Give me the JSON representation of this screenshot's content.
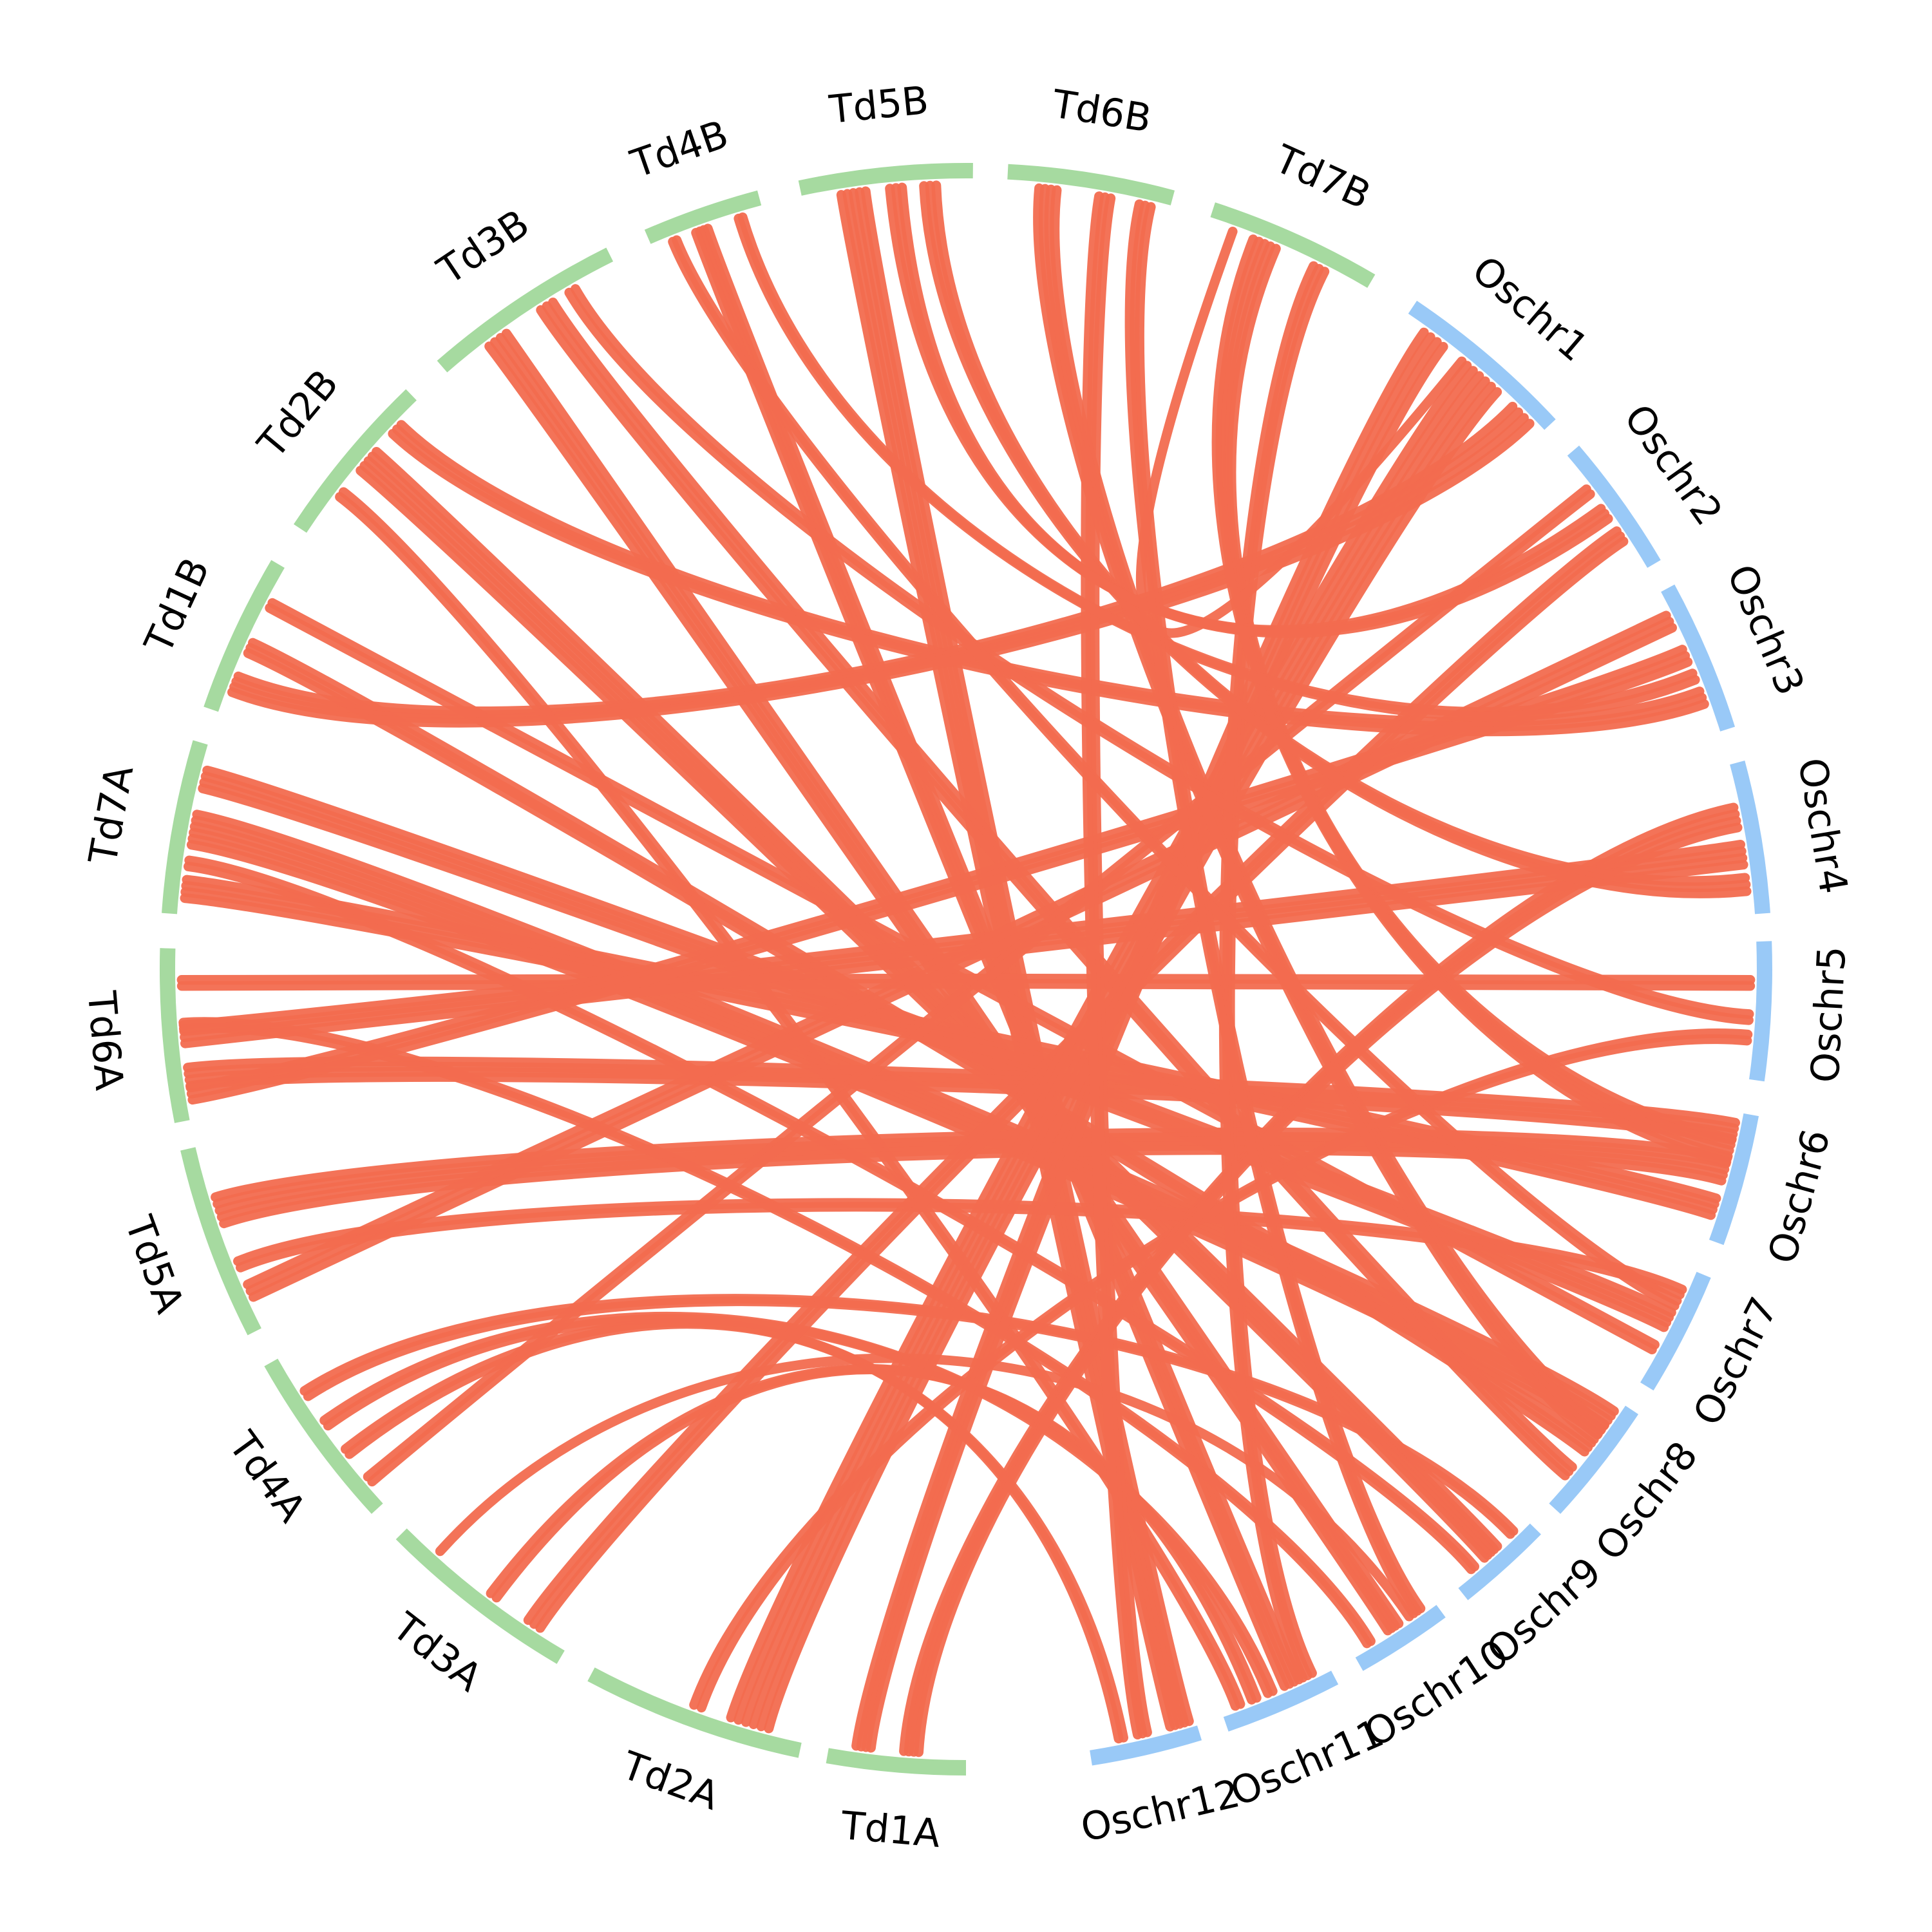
{
  "colors": {
    "rice_track": "#99C9F7",
    "wheat_track": "#A6DAA0",
    "link": "#F26C4F",
    "background": "#FFFFFF",
    "label": "#000000"
  },
  "chromosomes": [
    {
      "id": "Td1A",
      "label": "Td1A",
      "group": "wheat",
      "start": 90.0,
      "end": 100.0
    },
    {
      "id": "Td2A",
      "label": "Td2A",
      "group": "wheat",
      "start": 102.0,
      "end": 118.0
    },
    {
      "id": "Td3A",
      "label": "Td3A",
      "group": "wheat",
      "start": 120.5,
      "end": 135.0
    },
    {
      "id": "Td4A",
      "label": "Td4A",
      "group": "wheat",
      "start": 137.5,
      "end": 150.5
    },
    {
      "id": "Td5A",
      "label": "Td5A",
      "group": "wheat",
      "start": 153.0,
      "end": 167.0
    },
    {
      "id": "Td6A",
      "label": "Td6A",
      "group": "wheat",
      "start": 169.0,
      "end": 181.5
    },
    {
      "id": "Td7A",
      "label": "Td7A",
      "group": "wheat",
      "start": 184.0,
      "end": 196.5
    },
    {
      "id": "Td1B",
      "label": "Td1B",
      "group": "wheat",
      "start": 199.0,
      "end": 210.5
    },
    {
      "id": "Td2B",
      "label": "Td2B",
      "group": "wheat",
      "start": 213.5,
      "end": 226.0
    },
    {
      "id": "Td3B",
      "label": "Td3B",
      "group": "wheat",
      "start": 229.0,
      "end": 243.5
    },
    {
      "id": "Td4B",
      "label": "Td4B",
      "group": "wheat",
      "start": 246.5,
      "end": 255.0
    },
    {
      "id": "Td5B",
      "label": "Td5B",
      "group": "wheat",
      "start": 258.0,
      "end": 270.5
    },
    {
      "id": "Td6B",
      "label": "Td6B",
      "group": "wheat",
      "start": 273.0,
      "end": 285.0
    },
    {
      "id": "Td7B",
      "label": "Td7B",
      "group": "wheat",
      "start": 288.0,
      "end": 300.5
    },
    {
      "id": "Oschr1",
      "label": "Oschr1",
      "group": "rice",
      "start": 304.0,
      "end": 317.0
    },
    {
      "id": "Oschr2",
      "label": "Oschr2",
      "group": "rice",
      "start": 319.5,
      "end": 329.5
    },
    {
      "id": "Oschr3",
      "label": "Oschr3",
      "group": "rice",
      "start": 331.5,
      "end": 342.5
    },
    {
      "id": "Oschr4",
      "label": "Oschr4",
      "group": "rice",
      "start": 345.0,
      "end": 356.0
    },
    {
      "id": "Oschr5",
      "label": "Oschr5",
      "group": "rice",
      "start": 358.0,
      "end": 368.0
    },
    {
      "id": "Oschr6",
      "label": "Oschr6",
      "group": "rice",
      "start": 370.5,
      "end": 380.0
    },
    {
      "id": "Oschr7",
      "label": "Oschr7",
      "group": "rice",
      "start": 382.5,
      "end": 391.5
    },
    {
      "id": "Oschr8",
      "label": "Oschr8",
      "group": "rice",
      "start": 393.5,
      "end": 402.5
    },
    {
      "id": "Oschr9",
      "label": "Oschr9",
      "group": "rice",
      "start": 404.5,
      "end": 411.5
    },
    {
      "id": "Oschr10",
      "label": "Oschr10",
      "group": "rice",
      "start": 413.5,
      "end": 420.5
    },
    {
      "id": "Oschr11",
      "label": "Oschr11",
      "group": "rice",
      "start": 422.5,
      "end": 431.0
    },
    {
      "id": "Oschr12",
      "label": "Oschr12",
      "group": "rice",
      "start": 433.0,
      "end": 441.0
    }
  ],
  "links": [
    {
      "from": "Oschr12",
      "to": "Td5B",
      "a": 0.15,
      "b": 0.3,
      "count": 5
    },
    {
      "from": "Oschr12",
      "to": "Td4A",
      "a": 0.7,
      "b": 0.35,
      "count": 2
    },
    {
      "from": "Oschr11",
      "to": "Td4B",
      "a": 0.35,
      "b": 0.45,
      "count": 4
    },
    {
      "from": "Oschr11",
      "to": "Td3A",
      "a": 0.7,
      "b": 0.45,
      "count": 2
    },
    {
      "from": "Oschr11",
      "to": "Td4A",
      "a": 0.55,
      "b": 0.55,
      "count": 2
    },
    {
      "from": "Oschr11",
      "to": "Td2B",
      "a": 0.85,
      "b": 0.3,
      "count": 2
    },
    {
      "from": "Oschr10",
      "to": "Td3A",
      "a": 0.3,
      "b": 0.8,
      "count": 1
    },
    {
      "from": "Oschr10",
      "to": "Td3B",
      "a": 0.5,
      "b": 0.3,
      "count": 4
    },
    {
      "from": "Oschr10",
      "to": "Td6A",
      "a": 0.8,
      "b": 0.55,
      "count": 2
    },
    {
      "from": "Oschr9",
      "to": "Td4A",
      "a": 0.2,
      "b": 0.75,
      "count": 2
    },
    {
      "from": "Oschr9",
      "to": "Td2B",
      "a": 0.5,
      "b": 0.55,
      "count": 5
    },
    {
      "from": "Oschr9",
      "to": "Td7A",
      "a": 0.75,
      "b": 0.3,
      "count": 2
    },
    {
      "from": "Oschr8",
      "to": "Td7A",
      "a": 0.2,
      "b": 0.5,
      "count": 6
    },
    {
      "from": "Oschr8",
      "to": "Td1B",
      "a": 0.45,
      "b": 0.45,
      "count": 3
    },
    {
      "from": "Oschr8",
      "to": "Td3B",
      "a": 0.7,
      "b": 0.6,
      "count": 3
    },
    {
      "from": "Oschr7",
      "to": "Td5A",
      "a": 0.2,
      "b": 0.35,
      "count": 2
    },
    {
      "from": "Oschr7",
      "to": "Td7A",
      "a": 0.45,
      "b": 0.8,
      "count": 4
    },
    {
      "from": "Oschr7",
      "to": "Td1B",
      "a": 0.7,
      "b": 0.75,
      "count": 2
    },
    {
      "from": "Oschr6",
      "to": "Td6A",
      "a": 0.15,
      "b": 0.25,
      "count": 4
    },
    {
      "from": "Oschr6",
      "to": "Td5A",
      "a": 0.45,
      "b": 0.65,
      "count": 5
    },
    {
      "from": "Oschr6",
      "to": "Td7A",
      "a": 0.75,
      "b": 0.15,
      "count": 4
    },
    {
      "from": "Oschr5",
      "to": "Td6A",
      "a": 0.3,
      "b": 0.8,
      "count": 2
    },
    {
      "from": "Oschr5",
      "to": "Td2A",
      "a": 0.7,
      "b": 0.5,
      "count": 2
    },
    {
      "from": "Oschr4",
      "to": "Td1A",
      "a": 0.35,
      "b": 0.4,
      "count": 4
    },
    {
      "from": "Oschr4",
      "to": "Td6A",
      "a": 0.6,
      "b": 0.5,
      "count": 4
    },
    {
      "from": "Oschr3",
      "to": "Td5A",
      "a": 0.2,
      "b": 0.2,
      "count": 3
    },
    {
      "from": "Oschr3",
      "to": "Td6A",
      "a": 0.45,
      "b": 0.15,
      "count": 3
    },
    {
      "from": "Oschr3",
      "to": "Td2B",
      "a": 0.75,
      "b": 0.8,
      "count": 3
    },
    {
      "from": "Oschr2",
      "to": "Td4A",
      "a": 0.3,
      "b": 0.15,
      "count": 2
    },
    {
      "from": "Oschr2",
      "to": "Td3A",
      "a": 0.7,
      "b": 0.2,
      "count": 3
    },
    {
      "from": "Oschr1",
      "to": "Td1A",
      "a": 0.2,
      "b": 0.75,
      "count": 4
    },
    {
      "from": "Oschr1",
      "to": "Td2A",
      "a": 0.55,
      "b": 0.25,
      "count": 6
    },
    {
      "from": "Oschr1",
      "to": "Td1B",
      "a": 0.85,
      "b": 0.2,
      "count": 4
    },
    {
      "from": "Oschr12",
      "to": "Td6B",
      "a": 0.5,
      "b": 0.6,
      "count": 3
    },
    {
      "from": "Oschr11",
      "to": "Td7B",
      "a": 0.2,
      "b": 0.7,
      "count": 3
    },
    {
      "from": "Oschr8",
      "to": "Td6B",
      "a": 0.3,
      "b": 0.25,
      "count": 4
    },
    {
      "from": "Oschr6",
      "to": "Td7B",
      "a": 0.3,
      "b": 0.35,
      "count": 5
    },
    {
      "from": "Oschr4",
      "to": "Td5B",
      "a": 0.8,
      "b": 0.75,
      "count": 3
    },
    {
      "from": "Oschr3",
      "to": "Td4B",
      "a": 0.6,
      "b": 0.8,
      "count": 2
    },
    {
      "from": "Oschr2",
      "to": "Td5B",
      "a": 0.5,
      "b": 0.55,
      "count": 3
    },
    {
      "from": "Oschr5",
      "to": "Td3B",
      "a": 0.55,
      "b": 0.75,
      "count": 2
    },
    {
      "from": "Oschr7",
      "to": "Td4B",
      "a": 0.3,
      "b": 0.2,
      "count": 2
    },
    {
      "from": "Oschr10",
      "to": "Td6B",
      "a": 0.2,
      "b": 0.85,
      "count": 3
    },
    {
      "from": "Oschr1",
      "to": "Td7B",
      "a": 0.4,
      "b": 0.15,
      "count": 1
    }
  ]
}
